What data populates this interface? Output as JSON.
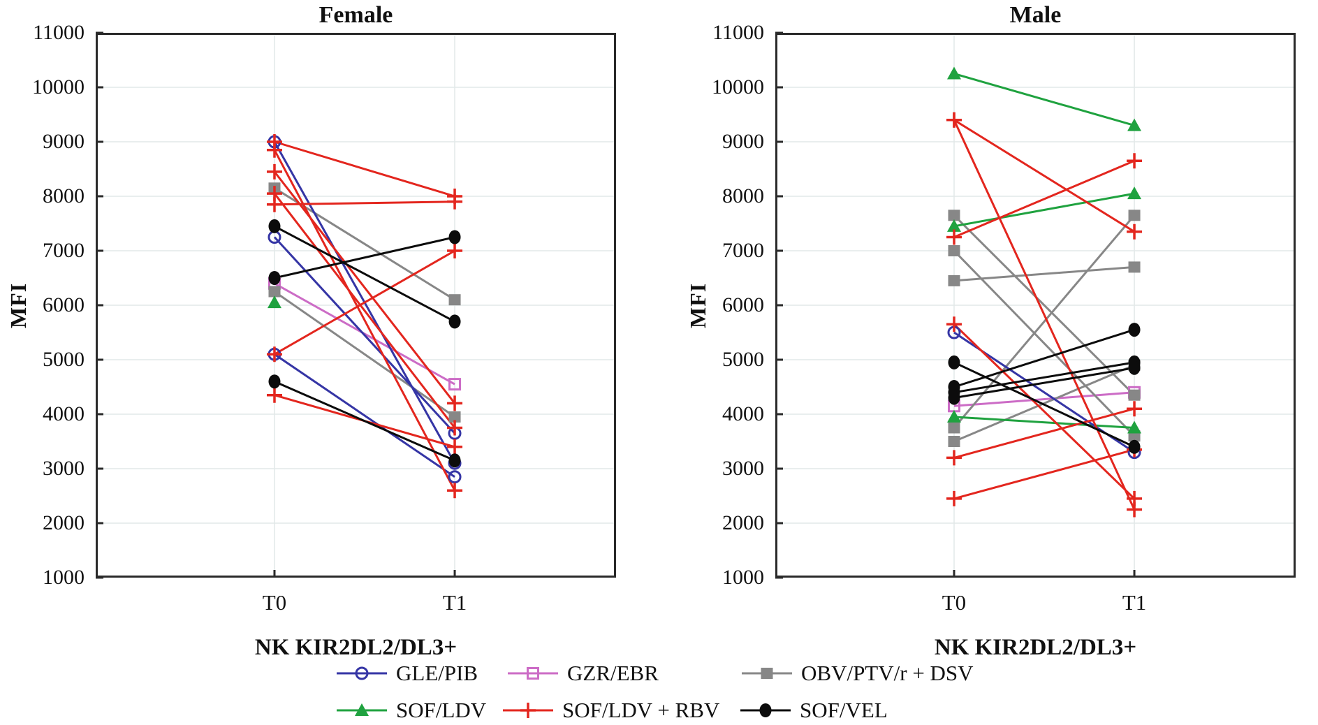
{
  "figure": {
    "legend": {
      "rows": [
        [
          {
            "label": "GLE/PIB",
            "marker": "circle-open",
            "color": "#3535A5"
          },
          {
            "label": "GZR/EBR",
            "marker": "square-open",
            "color": "#CC6CC6"
          },
          {
            "label": "OBV/PTV/r + DSV",
            "marker": "square",
            "color": "#878787"
          }
        ],
        [
          {
            "label": "SOF/LDV",
            "marker": "triangle",
            "color": "#1FA23F"
          },
          {
            "label": "SOF/LDV + RBV",
            "marker": "plus",
            "color": "#E3261E"
          },
          {
            "label": "SOF/VEL",
            "marker": "circle",
            "color": "#0C0C0C"
          }
        ]
      ]
    },
    "colors": {
      "grid": "#E2E8E8",
      "frame": "#2A2A2A",
      "background": "#FFFFFF"
    }
  },
  "chart_data": [
    {
      "type": "line",
      "title": "Female",
      "xlabel": "NK KIR2DL2/DL3+",
      "ylabel": "MFI",
      "x_categories": [
        "T0",
        "T1"
      ],
      "ylim": [
        1000,
        11000
      ],
      "ytick_step": 1000,
      "grid": true,
      "legend_position": "bottom",
      "series": [
        {
          "name": "GZR/EBR",
          "marker": "square-open",
          "color": "#CC6CC6",
          "pairs": [
            [
              6400,
              4550
            ]
          ]
        },
        {
          "name": "OBV/PTV/r + DSV",
          "marker": "square",
          "color": "#878787",
          "pairs": [
            [
              8150,
              6100
            ],
            [
              6250,
              3950
            ]
          ]
        },
        {
          "name": "SOF/LDV",
          "marker": "triangle",
          "color": "#1FA23F",
          "pairs": [
            [
              6050,
              null
            ]
          ]
        },
        {
          "name": "GLE/PIB",
          "marker": "circle-open",
          "color": "#3535A5",
          "pairs": [
            [
              9000,
              3100
            ],
            [
              7250,
              3650
            ],
            [
              5100,
              2850
            ]
          ]
        },
        {
          "name": "SOF/LDV + RBV",
          "marker": "plus",
          "color": "#E3261E",
          "pairs": [
            [
              9000,
              8000
            ],
            [
              8850,
              2600
            ],
            [
              8450,
              4200
            ],
            [
              8050,
              3750
            ],
            [
              7850,
              7900
            ],
            [
              5100,
              7000
            ],
            [
              4350,
              3400
            ]
          ]
        },
        {
          "name": "SOF/VEL",
          "marker": "circle",
          "color": "#0C0C0C",
          "pairs": [
            [
              7450,
              5700
            ],
            [
              6500,
              7250
            ],
            [
              4600,
              3150
            ]
          ]
        }
      ]
    },
    {
      "type": "line",
      "title": "Male",
      "xlabel": "NK KIR2DL2/DL3+",
      "ylabel": "MFI",
      "x_categories": [
        "T0",
        "T1"
      ],
      "ylim": [
        1000,
        11000
      ],
      "ytick_step": 1000,
      "grid": true,
      "legend_position": "bottom",
      "series": [
        {
          "name": "GZR/EBR",
          "marker": "square-open",
          "color": "#CC6CC6",
          "pairs": [
            [
              4150,
              4400
            ]
          ]
        },
        {
          "name": "OBV/PTV/r + DSV",
          "marker": "square",
          "color": "#878787",
          "pairs": [
            [
              7650,
              4350
            ],
            [
              7000,
              3600
            ],
            [
              6450,
              6700
            ],
            [
              3750,
              7650
            ],
            [
              3500,
              4900
            ]
          ]
        },
        {
          "name": "SOF/LDV",
          "marker": "triangle",
          "color": "#1FA23F",
          "pairs": [
            [
              10250,
              9300
            ],
            [
              7450,
              8050
            ],
            [
              3950,
              3750
            ]
          ]
        },
        {
          "name": "GLE/PIB",
          "marker": "circle-open",
          "color": "#3535A5",
          "pairs": [
            [
              5500,
              3300
            ]
          ]
        },
        {
          "name": "SOF/LDV + RBV",
          "marker": "plus",
          "color": "#E3261E",
          "pairs": [
            [
              9400,
              7350
            ],
            [
              9400,
              2250
            ],
            [
              7250,
              8650
            ],
            [
              5650,
              2450
            ],
            [
              3200,
              4100
            ],
            [
              2450,
              3350
            ]
          ]
        },
        {
          "name": "SOF/VEL",
          "marker": "circle",
          "color": "#0C0C0C",
          "pairs": [
            [
              4950,
              3400
            ],
            [
              4500,
              5550
            ],
            [
              4400,
              4950
            ],
            [
              4300,
              4850
            ]
          ]
        }
      ]
    }
  ]
}
